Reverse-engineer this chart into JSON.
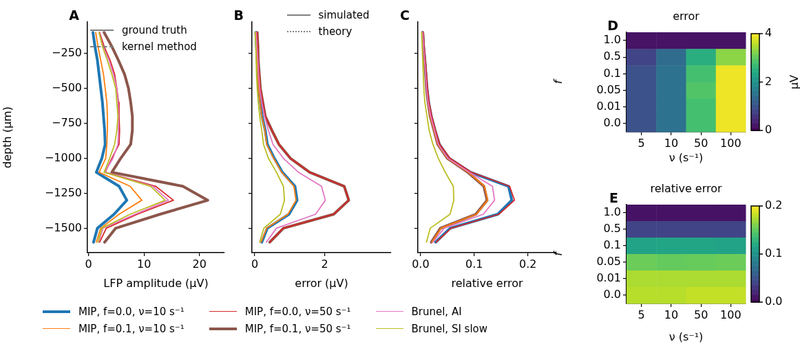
{
  "chart_data": [
    {
      "type": "line",
      "annotations": [
        "A"
      ],
      "xlabel": "LFP amplitude (µV)",
      "ylabel": "depth (µm)",
      "xlim": [
        -0.2,
        24.5
      ],
      "xticks": [
        0,
        10,
        20
      ],
      "ylim": [
        -1675,
        -25
      ],
      "yticks": [
        -250,
        -500,
        -750,
        -1000,
        -1250,
        -1500
      ],
      "legend": "bottom",
      "marker": "none",
      "series": [
        {
          "name": "MIP, f=0.0, ν=10 s⁻¹",
          "color": "#1f77b4",
          "x": [
            0.8,
            1.15,
            1.6,
            1.9,
            2.2,
            2.5,
            2.7,
            2.9,
            3.0,
            2.4,
            1.4,
            5.5,
            6.9,
            4.6,
            1.6,
            0.9
          ],
          "values": [
            -100,
            -200,
            -300,
            -400,
            -500,
            -600,
            -700,
            -800,
            -900,
            -1000,
            -1100,
            -1200,
            -1300,
            -1400,
            -1500,
            -1600
          ]
        },
        {
          "name": "MIP, f=0.1, ν=10 s⁻¹",
          "color": "#ff7f0e",
          "x": [
            1.3,
            1.7,
            2.2,
            2.7,
            3.0,
            3.3,
            3.4,
            3.4,
            3.3,
            3.1,
            1.9,
            7.5,
            9.6,
            5.5,
            2.2,
            1.4
          ],
          "values": [
            -100,
            -200,
            -300,
            -400,
            -500,
            -600,
            -700,
            -800,
            -900,
            -1000,
            -1100,
            -1200,
            -1300,
            -1400,
            -1500,
            -1600
          ]
        },
        {
          "name": "MIP, f=0.0, ν=50 s⁻¹",
          "color": "#d62728",
          "x": [
            2.0,
            2.8,
            3.9,
            4.7,
            5.1,
            5.4,
            5.5,
            5.6,
            5.5,
            4.2,
            3.0,
            12.1,
            15.3,
            8.8,
            3.2,
            2.0
          ],
          "values": [
            -100,
            -200,
            -300,
            -400,
            -500,
            -600,
            -700,
            -800,
            -900,
            -1000,
            -1100,
            -1200,
            -1300,
            -1400,
            -1500,
            -1600
          ]
        },
        {
          "name": "MIP, f=0.1, ν=50 s⁻¹",
          "color": "#8c564b",
          "x": [
            2.8,
            4.2,
            5.4,
            6.5,
            7.2,
            7.6,
            7.9,
            7.9,
            7.6,
            5.8,
            4.2,
            17.0,
            21.5,
            12.9,
            4.9,
            2.9
          ],
          "values": [
            -100,
            -200,
            -300,
            -400,
            -500,
            -600,
            -700,
            -800,
            -900,
            -1000,
            -1100,
            -1200,
            -1300,
            -1400,
            -1500,
            -1600
          ]
        },
        {
          "name": "Brunel, AI",
          "color": "#e377c2",
          "x": [
            1.9,
            2.6,
            3.7,
            4.5,
            5.1,
            5.3,
            5.4,
            5.4,
            5.3,
            4.4,
            2.9,
            11.6,
            14.4,
            8.4,
            2.6,
            1.8
          ],
          "values": [
            -100,
            -200,
            -300,
            -400,
            -500,
            -600,
            -700,
            -800,
            -900,
            -1000,
            -1100,
            -1200,
            -1300,
            -1400,
            -1500,
            -1600
          ]
        },
        {
          "name": "Brunel, SI slow",
          "color": "#bcbd22",
          "x": [
            1.9,
            2.5,
            3.4,
            4.2,
            4.9,
            5.1,
            5.3,
            5.1,
            4.7,
            3.8,
            2.8,
            11.2,
            13.8,
            7.5,
            2.4,
            1.7
          ],
          "values": [
            -100,
            -200,
            -300,
            -400,
            -500,
            -600,
            -700,
            -800,
            -900,
            -1000,
            -1100,
            -1200,
            -1300,
            -1400,
            -1500,
            -1600
          ]
        },
        {
          "name": "ground truth",
          "color": "#808080",
          "line_style": "solid"
        },
        {
          "name": "kernel method",
          "color": "#808080",
          "line_style": "dashed"
        }
      ]
    },
    {
      "type": "line",
      "annotations": [
        "B"
      ],
      "xlabel": "error (µV)",
      "xlim": [
        -0.08,
        3.9
      ],
      "xticks": [
        0,
        2
      ],
      "ylim": [
        -1675,
        -25
      ],
      "yticks": [
        -250,
        -500,
        -750,
        -1000,
        -1250,
        -1500
      ],
      "tick_labels": "x",
      "legend": "top right",
      "marker": "none",
      "series": [
        {
          "color": "#1f77b4",
          "x": [
            0.03,
            0.05,
            0.07,
            0.09,
            0.11,
            0.16,
            0.21,
            0.3,
            0.36,
            0.56,
            0.79,
            1.15,
            1.21,
            0.98,
            0.36,
            0.2
          ],
          "values": [
            -100,
            -200,
            -300,
            -400,
            -500,
            -600,
            -700,
            -800,
            -900,
            -1000,
            -1100,
            -1200,
            -1300,
            -1400,
            -1500,
            -1600
          ]
        },
        {
          "color": "#ff7f0e",
          "x": [
            0.03,
            0.05,
            0.07,
            0.09,
            0.11,
            0.15,
            0.2,
            0.29,
            0.34,
            0.54,
            0.77,
            1.12,
            1.18,
            0.95,
            0.34,
            0.18
          ],
          "values": [
            -100,
            -200,
            -300,
            -400,
            -500,
            -600,
            -700,
            -800,
            -900,
            -1000,
            -1100,
            -1200,
            -1300,
            -1400,
            -1500,
            -1600
          ]
        },
        {
          "color": "#d62728",
          "x": [
            0.07,
            0.09,
            0.1,
            0.13,
            0.16,
            0.23,
            0.3,
            0.49,
            0.69,
            1.02,
            1.57,
            2.56,
            2.69,
            2.26,
            0.82,
            0.43
          ],
          "values": [
            -100,
            -200,
            -300,
            -400,
            -500,
            -600,
            -700,
            -800,
            -900,
            -1000,
            -1100,
            -1200,
            -1300,
            -1400,
            -1500,
            -1600
          ]
        },
        {
          "color": "#8c564b",
          "x": [
            0.07,
            0.09,
            0.1,
            0.13,
            0.16,
            0.23,
            0.3,
            0.49,
            0.69,
            1.02,
            1.57,
            2.56,
            2.69,
            2.26,
            0.82,
            0.43
          ],
          "values": [
            -100,
            -200,
            -300,
            -400,
            -500,
            -600,
            -700,
            -800,
            -900,
            -1000,
            -1100,
            -1200,
            -1300,
            -1400,
            -1500,
            -1600
          ]
        },
        {
          "color": "#e377c2",
          "x": [
            0.04,
            0.06,
            0.09,
            0.11,
            0.14,
            0.2,
            0.28,
            0.39,
            0.52,
            0.82,
            1.25,
            1.91,
            2.02,
            1.74,
            0.62,
            0.33
          ],
          "values": [
            -100,
            -200,
            -300,
            -400,
            -500,
            -600,
            -700,
            -800,
            -900,
            -1000,
            -1100,
            -1200,
            -1300,
            -1400,
            -1500,
            -1600
          ]
        },
        {
          "color": "#bcbd22",
          "x": [
            0.01,
            0.03,
            0.04,
            0.05,
            0.07,
            0.1,
            0.14,
            0.2,
            0.25,
            0.39,
            0.62,
            0.82,
            0.85,
            0.73,
            0.26,
            0.14
          ],
          "values": [
            -100,
            -200,
            -300,
            -400,
            -500,
            -600,
            -700,
            -800,
            -900,
            -1000,
            -1100,
            -1200,
            -1300,
            -1400,
            -1500,
            -1600
          ]
        },
        {
          "name": "simulated",
          "color": "#808080",
          "line_style": "solid"
        },
        {
          "name": "theory",
          "color": "#808080",
          "line_style": "dotted"
        }
      ]
    },
    {
      "type": "line",
      "annotations": [
        "C"
      ],
      "xlabel": "relative error",
      "xlim": [
        -0.005,
        0.253
      ],
      "xticks": [
        {
          "value": 0,
          "label": "0.0"
        },
        0.1,
        0.2
      ],
      "ylim": [
        -1675,
        -25
      ],
      "yticks": [
        -250,
        -500,
        -750,
        -1000,
        -1250,
        -1500
      ],
      "tick_labels": "x",
      "marker": "none",
      "series": [
        {
          "color": "#1f77b4",
          "x": [
            0.004,
            0.0056,
            0.008,
            0.01,
            0.012,
            0.015,
            0.02,
            0.027,
            0.035,
            0.053,
            0.093,
            0.164,
            0.17,
            0.144,
            0.055,
            0.028
          ],
          "values": [
            -100,
            -200,
            -300,
            -400,
            -500,
            -600,
            -700,
            -800,
            -900,
            -1000,
            -1100,
            -1200,
            -1300,
            -1400,
            -1500,
            -1600
          ]
        },
        {
          "color": "#ff7f0e",
          "x": [
            null,
            null,
            null,
            null,
            null,
            0.014,
            0.018,
            0.025,
            0.032,
            0.05,
            0.089,
            0.119,
            0.125,
            0.104,
            0.038,
            0.021
          ],
          "values": [
            null,
            null,
            null,
            null,
            null,
            -600,
            -700,
            -800,
            -900,
            -1000,
            -1100,
            -1200,
            -1300,
            -1400,
            -1500,
            -1600
          ]
        },
        {
          "color": "#d62728",
          "x": [
            0.005,
            0.0065,
            0.009,
            0.011,
            0.013,
            0.016,
            0.021,
            0.028,
            0.036,
            0.055,
            0.095,
            0.166,
            0.175,
            0.146,
            0.057,
            0.029
          ],
          "values": [
            -100,
            -200,
            -300,
            -400,
            -500,
            -600,
            -700,
            -800,
            -900,
            -1000,
            -1100,
            -1200,
            -1300,
            -1400,
            -1500,
            -1600
          ]
        },
        {
          "color": "#8c564b",
          "x": [
            0.004,
            0.0055,
            0.0075,
            0.0095,
            0.011,
            0.014,
            0.018,
            0.025,
            0.032,
            0.05,
            0.088,
            0.118,
            0.124,
            0.103,
            0.037,
            0.02
          ],
          "values": [
            -100,
            -200,
            -300,
            -400,
            -500,
            -600,
            -700,
            -800,
            -900,
            -1000,
            -1100,
            -1200,
            -1300,
            -1400,
            -1500,
            -1600
          ]
        },
        {
          "color": "#e377c2",
          "x": [
            0.004,
            0.0055,
            0.0075,
            0.0095,
            0.011,
            0.014,
            0.019,
            0.026,
            0.033,
            0.051,
            0.091,
            0.134,
            0.138,
            0.117,
            0.044,
            0.023
          ],
          "values": [
            -100,
            -200,
            -300,
            -400,
            -500,
            -600,
            -700,
            -800,
            -900,
            -1000,
            -1100,
            -1200,
            -1300,
            -1400,
            -1500,
            -1600
          ]
        },
        {
          "color": "#bcbd22",
          "x": [
            0.002,
            0.003,
            0.004,
            0.005,
            0.006,
            0.008,
            0.012,
            0.016,
            0.023,
            0.033,
            0.046,
            0.061,
            0.062,
            0.055,
            0.018,
            0.011
          ],
          "values": [
            -100,
            -200,
            -300,
            -400,
            -500,
            -600,
            -700,
            -800,
            -900,
            -1000,
            -1100,
            -1200,
            -1300,
            -1400,
            -1500,
            -1600
          ]
        }
      ]
    },
    {
      "type": "heatmap",
      "title": "error",
      "annotations": [
        "D"
      ],
      "xlabel": "ν (s⁻¹)",
      "ylabel": "f",
      "clabel": "µV",
      "categories": [
        "5",
        "10",
        "50",
        "100"
      ],
      "y_categories": [
        "1.0",
        "0.5",
        "0.1",
        "0.05",
        "0.01",
        "0.0"
      ],
      "clim": [
        0,
        4
      ],
      "cticks": [
        0,
        2,
        4
      ],
      "cells": [
        [
          0.2,
          0.2,
          0.2,
          0.2
        ],
        [
          0.8,
          1.4,
          2.5,
          3.3
        ],
        [
          1.0,
          1.5,
          2.8,
          3.9
        ],
        [
          1.0,
          1.5,
          2.9,
          3.9
        ],
        [
          1.0,
          1.5,
          2.8,
          3.9
        ],
        [
          1.0,
          1.5,
          2.8,
          3.9
        ]
      ]
    },
    {
      "type": "heatmap",
      "title": "relative error",
      "annotations": [
        "E"
      ],
      "xlabel": "ν (s⁻¹)",
      "ylabel": "f",
      "categories": [
        "5",
        "10",
        "50",
        "100"
      ],
      "y_categories": [
        "1.0",
        "0.5",
        "0.1",
        "0.05",
        "0.01",
        "0.0"
      ],
      "clim": [
        0,
        0.2
      ],
      "cticks": [
        {
          "value": 0,
          "label": "0.0"
        },
        0.1,
        0.2
      ],
      "cells": [
        [
          0.01,
          0.01,
          0.01,
          0.01
        ],
        [
          0.04,
          0.04,
          0.04,
          0.04
        ],
        [
          0.115,
          0.117,
          0.117,
          0.115
        ],
        [
          0.155,
          0.152,
          0.153,
          0.155
        ],
        [
          0.175,
          0.175,
          0.175,
          0.175
        ],
        [
          0.178,
          0.178,
          0.182,
          0.182
        ]
      ]
    }
  ]
}
